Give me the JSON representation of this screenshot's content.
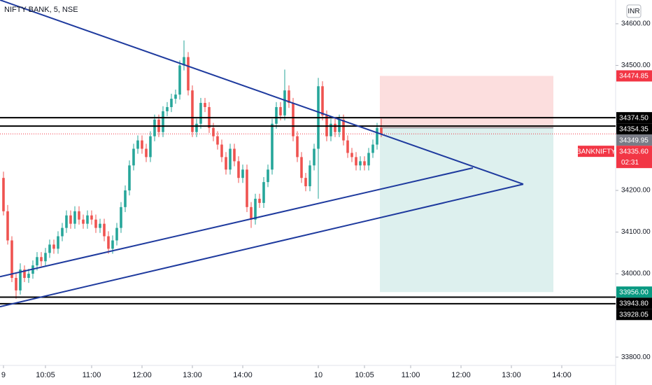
{
  "chart_data": {
    "type": "candlestick",
    "title": "NIFTY BANK, 5, NSE",
    "currency": "INR",
    "xlim": [
      -0.83,
      145.83
    ],
    "ylim": [
      33733,
      34657
    ],
    "xticks": [
      {
        "value": 0,
        "label": "9"
      },
      {
        "value": 10,
        "label": "10:05"
      },
      {
        "value": 21,
        "label": "11:00"
      },
      {
        "value": 33,
        "label": "12:00"
      },
      {
        "value": 45,
        "label": "13:00"
      },
      {
        "value": 57,
        "label": "14:00"
      },
      {
        "value": 75,
        "label": "10"
      },
      {
        "value": 86,
        "label": "10:05"
      },
      {
        "value": 97,
        "label": "11:00"
      },
      {
        "value": 109,
        "label": "12:00"
      },
      {
        "value": 121,
        "label": "13:00"
      },
      {
        "value": 133,
        "label": "14:00"
      }
    ],
    "yticks": [
      {
        "value": 34600,
        "label": "34600.00"
      },
      {
        "value": 34500,
        "label": "34500.00"
      },
      {
        "value": 34200,
        "label": "34200.00"
      },
      {
        "value": 34100,
        "label": "34100.00"
      },
      {
        "value": 34000,
        "label": "34000.00"
      },
      {
        "value": 33800,
        "label": "33800.00"
      }
    ],
    "up_color": "#26a69a",
    "down_color": "#ef5350",
    "candles": [
      [
        34230,
        34245,
        34140,
        34150
      ],
      [
        34150,
        34165,
        34070,
        34080
      ],
      [
        34080,
        34090,
        33980,
        33990
      ],
      [
        33990,
        34000,
        33940,
        33960
      ],
      [
        33960,
        34025,
        33950,
        34010
      ],
      [
        34010,
        34020,
        33980,
        33990
      ],
      [
        33990,
        34012,
        33978,
        34000
      ],
      [
        34000,
        34032,
        33988,
        34020
      ],
      [
        34020,
        34052,
        34008,
        34040
      ],
      [
        34040,
        34052,
        34018,
        34030
      ],
      [
        34030,
        34062,
        34018,
        34050
      ],
      [
        34050,
        34082,
        34038,
        34070
      ],
      [
        34070,
        34082,
        34048,
        34060
      ],
      [
        34060,
        34102,
        34048,
        34090
      ],
      [
        34090,
        34122,
        34078,
        34110
      ],
      [
        34110,
        34152,
        34098,
        34140
      ],
      [
        34140,
        34152,
        34108,
        34120
      ],
      [
        34120,
        34162,
        34108,
        34150
      ],
      [
        34150,
        34162,
        34118,
        34130
      ],
      [
        34130,
        34142,
        34108,
        34120
      ],
      [
        34120,
        34152,
        34108,
        34140
      ],
      [
        34140,
        34152,
        34118,
        34130
      ],
      [
        34130,
        34142,
        34098,
        34110
      ],
      [
        34110,
        34132,
        34098,
        34120
      ],
      [
        34120,
        34132,
        34078,
        34090
      ],
      [
        34090,
        34102,
        34048,
        34060
      ],
      [
        34060,
        34092,
        34048,
        34080
      ],
      [
        34080,
        34122,
        34068,
        34110
      ],
      [
        34110,
        34172,
        34098,
        34160
      ],
      [
        34160,
        34212,
        34148,
        34200
      ],
      [
        34200,
        34272,
        34188,
        34260
      ],
      [
        34260,
        34312,
        34248,
        34300
      ],
      [
        34300,
        34332,
        34288,
        34320
      ],
      [
        34320,
        34332,
        34288,
        34300
      ],
      [
        34300,
        34312,
        34268,
        34280
      ],
      [
        34280,
        34342,
        34268,
        34330
      ],
      [
        34330,
        34382,
        34318,
        34370
      ],
      [
        34370,
        34382,
        34328,
        34340
      ],
      [
        34340,
        34402,
        34328,
        34390
      ],
      [
        34390,
        34412,
        34378,
        34400
      ],
      [
        34400,
        34432,
        34388,
        34420
      ],
      [
        34420,
        34442,
        34408,
        34430
      ],
      [
        34430,
        34512,
        34418,
        34500
      ],
      [
        34500,
        34560,
        34488,
        34520
      ],
      [
        34520,
        34532,
        34428,
        34440
      ],
      [
        34440,
        34452,
        34328,
        34340
      ],
      [
        34340,
        34372,
        34328,
        34360
      ],
      [
        34360,
        34422,
        34348,
        34410
      ],
      [
        34410,
        34422,
        34388,
        34400
      ],
      [
        34400,
        34412,
        34338,
        34350
      ],
      [
        34350,
        34362,
        34318,
        34330
      ],
      [
        34330,
        34342,
        34298,
        34310
      ],
      [
        34310,
        34322,
        34268,
        34280
      ],
      [
        34280,
        34292,
        34238,
        34250
      ],
      [
        34250,
        34312,
        34238,
        34300
      ],
      [
        34300,
        34312,
        34258,
        34270
      ],
      [
        34270,
        34282,
        34218,
        34230
      ],
      [
        34230,
        34262,
        34218,
        34250
      ],
      [
        34250,
        34262,
        34148,
        34160
      ],
      [
        34160,
        34172,
        34110,
        34130
      ],
      [
        34130,
        34192,
        34118,
        34180
      ],
      [
        34180,
        34192,
        34158,
        34170
      ],
      [
        34170,
        34232,
        34158,
        34220
      ],
      [
        34220,
        34262,
        34208,
        34250
      ],
      [
        34250,
        34372,
        34238,
        34360
      ],
      [
        34360,
        34412,
        34348,
        34400
      ],
      [
        34400,
        34412,
        34368,
        34380
      ],
      [
        34380,
        34490,
        34368,
        34440
      ],
      [
        34440,
        34452,
        34398,
        34410
      ],
      [
        34410,
        34422,
        34318,
        34330
      ],
      [
        34330,
        34342,
        34268,
        34280
      ],
      [
        34280,
        34292,
        34218,
        34230
      ],
      [
        34230,
        34242,
        34198,
        34210
      ],
      [
        34210,
        34272,
        34198,
        34260
      ],
      [
        34260,
        34312,
        34248,
        34300
      ],
      [
        34300,
        34470,
        34180,
        34450
      ],
      [
        34450,
        34462,
        34368,
        34380
      ],
      [
        34380,
        34392,
        34318,
        34330
      ],
      [
        34330,
        34372,
        34318,
        34360
      ],
      [
        34360,
        34372,
        34328,
        34340
      ],
      [
        34340,
        34382,
        34328,
        34370
      ],
      [
        34370,
        34382,
        34308,
        34320
      ],
      [
        34320,
        34332,
        34278,
        34290
      ],
      [
        34290,
        34302,
        34268,
        34280
      ],
      [
        34280,
        34292,
        34248,
        34260
      ],
      [
        34260,
        34282,
        34248,
        34270
      ],
      [
        34270,
        34282,
        34248,
        34260
      ],
      [
        34260,
        34302,
        34248,
        34290
      ],
      [
        34290,
        34322,
        34278,
        34310
      ],
      [
        34310,
        34362,
        34298,
        34350
      ],
      [
        34350,
        34372,
        34328,
        34335.6
      ]
    ],
    "trendlines": [
      {
        "color": "#1e3a9e",
        "points": [
          [
            -0.83,
            34657
          ],
          [
            123.83,
            34215
          ]
        ]
      },
      {
        "color": "#1e3a9e",
        "points": [
          [
            -0.83,
            33921
          ],
          [
            123.83,
            34215
          ]
        ]
      },
      {
        "color": "#1e3a9e",
        "points": [
          [
            -0.83,
            33993
          ],
          [
            111.83,
            34254
          ]
        ]
      }
    ],
    "horizontal_lines": [
      34374.5,
      34354.35,
      33943.8,
      33928.05
    ],
    "position": {
      "start": 89.67,
      "end": 131,
      "entry": 34349.95,
      "target": 34474.85,
      "stop": 33956,
      "target_color": "#fcdada",
      "stop_color": "#d9eeec"
    },
    "price_labels": [
      {
        "value": 34474.85,
        "label": "34474.85",
        "color": "#f23645"
      },
      {
        "value": 34374.5,
        "label": "34374.50",
        "color": "#000000"
      },
      {
        "value": 34354.35,
        "label": "34354.35",
        "color": "#000000"
      },
      {
        "value": 34349.95,
        "label": "34349.95",
        "color": "#787b86"
      },
      {
        "value": 33956,
        "label": "33956.00",
        "color": "#089981"
      },
      {
        "value": 33943.8,
        "label": "33943.80",
        "color": "#000000"
      },
      {
        "value": 33928.05,
        "label": "33928.05",
        "color": "#000000"
      }
    ],
    "last_price": {
      "value": 34335.6,
      "label": "34335.60",
      "symbol": "BANKNIFTY",
      "countdown": "02:31",
      "color": "#f23645"
    }
  }
}
